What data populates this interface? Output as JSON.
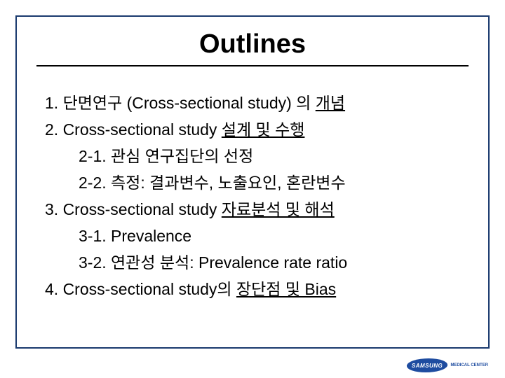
{
  "slide": {
    "title": "Outlines",
    "title_fontsize": 38,
    "title_color": "#000000",
    "frame_color": "#1a3a6e",
    "background": "#ffffff",
    "body_fontsize": 23,
    "body_color": "#000000",
    "line_height": 1.65,
    "items": [
      {
        "prefix": "1. 단면연구 (Cross-sectional study) 의 ",
        "underlined": "개념",
        "suffix": "",
        "indent": false
      },
      {
        "prefix": "2. Cross-sectional study ",
        "underlined": "설계 및 수행",
        "suffix": "",
        "indent": false
      },
      {
        "prefix": "2-1. 관심 연구집단의 선정",
        "underlined": "",
        "suffix": "",
        "indent": true
      },
      {
        "prefix": "2-2. 측정: 결과변수, 노출요인, 혼란변수",
        "underlined": "",
        "suffix": "",
        "indent": true
      },
      {
        "prefix": "3. Cross-sectional study ",
        "underlined": "자료분석 및 해석",
        "suffix": "",
        "indent": false
      },
      {
        "prefix": "3-1. Prevalence",
        "underlined": "",
        "suffix": "",
        "indent": true
      },
      {
        "prefix": "3-2. 연관성 분석: Prevalence rate ratio",
        "underlined": "",
        "suffix": "",
        "indent": true
      },
      {
        "prefix": "4. Cross-sectional study의 ",
        "underlined": "장단점 및 Bias",
        "suffix": "",
        "indent": false
      }
    ]
  },
  "logo": {
    "main": "SAMSUNG",
    "sub": "MEDICAL CENTER",
    "bg_color": "#1e4ca0",
    "text_color": "#ffffff"
  }
}
